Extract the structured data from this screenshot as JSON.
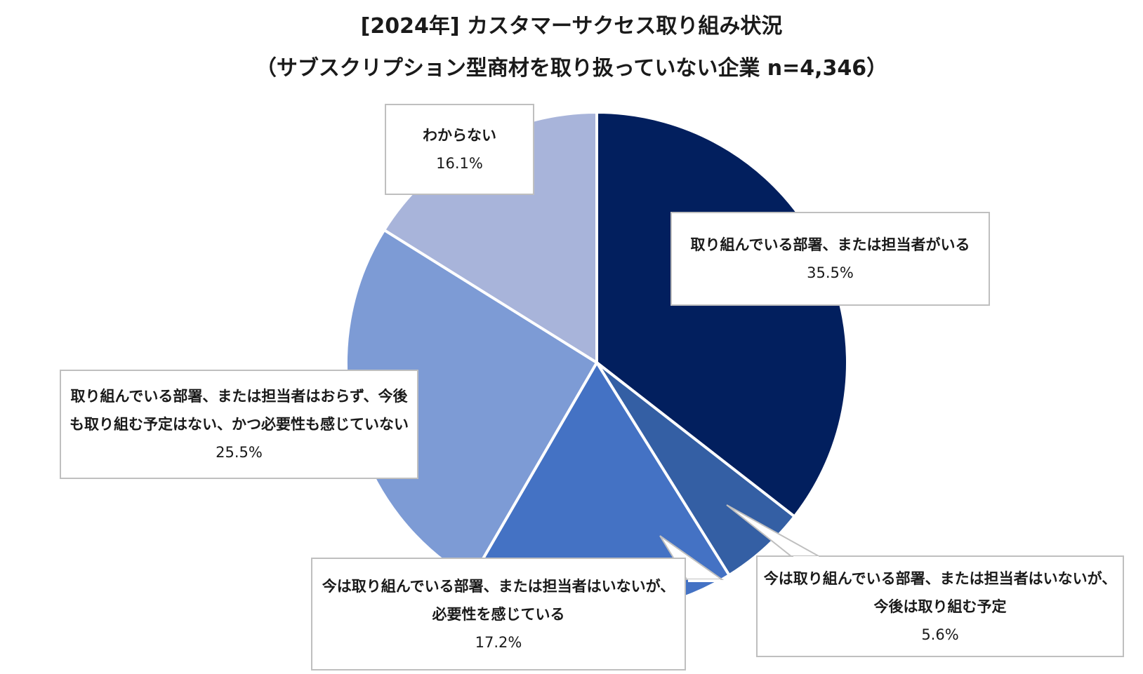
{
  "title": "[2024年] カスタマーサクセス取り組み状況",
  "subtitle": "（サブスクリプション型商材を取り扱っていない企業 n=4,346）",
  "chart_data": {
    "type": "pie",
    "title": "[2024年] カスタマーサクセス取り組み状況",
    "subtitle": "（サブスクリプション型商材を取り扱っていない企業 n=4,346）",
    "start": "12 o'clock, clockwise",
    "slices": [
      {
        "label": "取り組んでいる部署、または担当者がいる",
        "label_lines": [
          "取り組んでいる部署、または担当者がいる"
        ],
        "value": 35.5,
        "value_label": "35.5%",
        "color": "#021f5e"
      },
      {
        "label": "今は取り組んでいる部署、または担当者はいないが、今後は取り組む予定",
        "label_lines": [
          "今は取り組んでいる部署、または担当者はいないが、",
          "今後は取り組む予定"
        ],
        "value": 5.6,
        "value_label": "5.6%",
        "color": "#345fa4"
      },
      {
        "label": "今は取り組んでいる部署、または担当者はいないが、必要性を感じている",
        "label_lines": [
          "今は取り組んでいる部署、または担当者はいないが、",
          "必要性を感じている"
        ],
        "value": 17.2,
        "value_label": "17.2%",
        "color": "#4472c4"
      },
      {
        "label": "取り組んでいる部署、または担当者はおらず、今後も取り組む予定はない、かつ必要性も感じていない",
        "label_lines": [
          "取り組んでいる部署、または担当者はおらず、今後",
          "も取り組む予定はない、かつ必要性も感じていない"
        ],
        "value": 25.5,
        "value_label": "25.5%",
        "color": "#7d9bd5"
      },
      {
        "label": "わからない",
        "label_lines": [
          "わからない"
        ],
        "value": 16.1,
        "value_label": "16.1%",
        "color": "#a8b4da"
      }
    ]
  }
}
